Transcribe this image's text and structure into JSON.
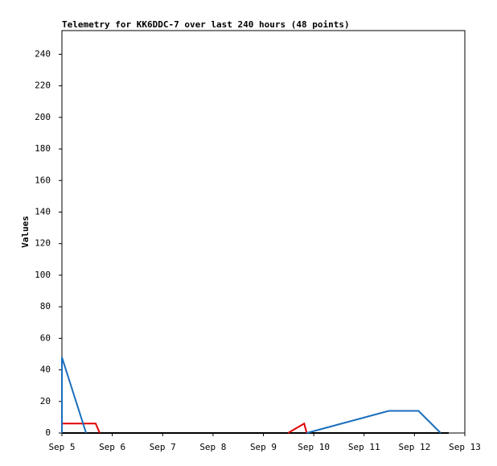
{
  "chart_data": {
    "type": "line",
    "title": "Telemetry for KK6DDC-7 over last 240 hours (48 points)",
    "y_label": "Values",
    "xlim": [
      5,
      13
    ],
    "xticks": [
      {
        "value": 5,
        "label": "Sep 5"
      },
      {
        "value": 6,
        "label": "Sep 6"
      },
      {
        "value": 7,
        "label": "Sep 7"
      },
      {
        "value": 8,
        "label": "Sep 8"
      },
      {
        "value": 9,
        "label": "Sep 9"
      },
      {
        "value": 10,
        "label": "Sep 10"
      },
      {
        "value": 11,
        "label": "Sep 11"
      },
      {
        "value": 12,
        "label": "Sep 12"
      },
      {
        "value": 13,
        "label": "Sep 13"
      }
    ],
    "ylim": [
      0,
      255
    ],
    "yticks": [
      0,
      20,
      40,
      60,
      80,
      100,
      120,
      140,
      160,
      180,
      200,
      220,
      240
    ],
    "series": [
      {
        "color": "#000000",
        "x": [
          5,
          12.68
        ],
        "values": [
          0,
          0
        ]
      },
      {
        "color": "#e00000",
        "x": [
          5,
          5,
          5.67,
          5.75,
          null,
          9.49,
          9.81,
          9.86
        ],
        "values": [
          0,
          6,
          6,
          0,
          null,
          0,
          6,
          0
        ]
      },
      {
        "color": "#1a6ebd",
        "x": [
          5,
          5,
          5.48,
          null,
          9.86,
          11.49,
          12.08,
          12.52
        ],
        "values": [
          0,
          48,
          0,
          null,
          0,
          14,
          14,
          0
        ]
      }
    ]
  }
}
